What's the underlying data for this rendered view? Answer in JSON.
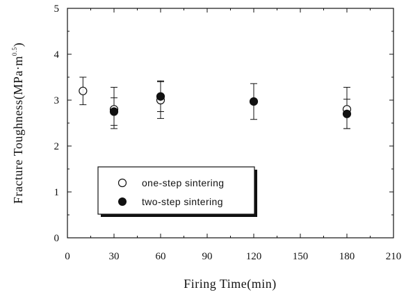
{
  "chart_data": {
    "type": "scatter",
    "xlabel": "Firing Time(min)",
    "ylabel": "Fracture Toughness(MPa·m",
    "ylabel_sup": "0.5",
    "ylabel_close": ")",
    "xlim": [
      0,
      210
    ],
    "ylim": [
      0,
      5
    ],
    "x_ticks": [
      0,
      30,
      60,
      90,
      120,
      150,
      180,
      210
    ],
    "y_ticks": [
      0,
      1,
      2,
      3,
      4,
      5
    ],
    "x_tick_labels": [
      "0",
      "30",
      "60",
      "90",
      "120",
      "150",
      "180",
      "210"
    ],
    "y_tick_labels": [
      "0",
      "1",
      "2",
      "3",
      "4",
      "5"
    ],
    "grid": false,
    "legend_position": "lower-left",
    "series": [
      {
        "name": "one-step sintering",
        "marker": "open-circle",
        "points": [
          {
            "x": 10,
            "y": 3.2,
            "err_low": 2.9,
            "err_high": 3.5
          },
          {
            "x": 30,
            "y": 2.8,
            "err_low": 2.38,
            "err_high": 3.28
          },
          {
            "x": 60,
            "y": 3.0,
            "err_low": 2.6,
            "err_high": 3.4
          },
          {
            "x": 180,
            "y": 2.8,
            "err_low": 2.38,
            "err_high": 3.28
          }
        ]
      },
      {
        "name": "two-step sintering",
        "marker": "filled-circle",
        "points": [
          {
            "x": 30,
            "y": 2.75,
            "err_low": 2.45,
            "err_high": 3.05
          },
          {
            "x": 60,
            "y": 3.08,
            "err_low": 2.75,
            "err_high": 3.42
          },
          {
            "x": 120,
            "y": 2.97,
            "err_low": 2.58,
            "err_high": 3.36
          },
          {
            "x": 180,
            "y": 2.7,
            "err_low": 2.38,
            "err_high": 3.02
          }
        ]
      }
    ]
  }
}
